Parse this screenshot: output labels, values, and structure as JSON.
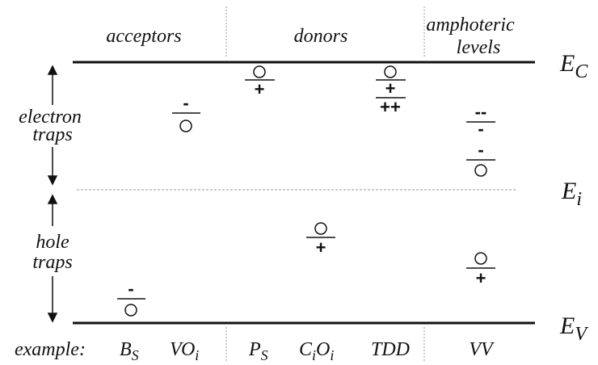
{
  "header": {
    "columns": [
      "acceptors",
      "donors",
      "amphoteric",
      "levels"
    ]
  },
  "bands": {
    "conduction": [
      "E",
      "C"
    ],
    "intrinsic": [
      "E",
      "i"
    ],
    "valence": [
      "E",
      "V"
    ]
  },
  "side_labels": {
    "electron_traps": [
      "electron",
      "traps"
    ],
    "hole_traps": [
      "hole",
      "traps"
    ]
  },
  "example_label": "example:",
  "examples": [
    [
      "B",
      "S"
    ],
    [
      "VO",
      "i"
    ],
    [
      "P",
      "S"
    ],
    [
      "C",
      "i",
      "O",
      "i"
    ],
    [
      "TDD"
    ],
    [
      "VV"
    ]
  ],
  "charges": {
    "bs": "-",
    "voi": "-",
    "ps": "+",
    "tdd": [
      "+",
      "++"
    ],
    "cioi": "+",
    "vv": [
      "--",
      "-",
      "-",
      "+"
    ]
  }
}
